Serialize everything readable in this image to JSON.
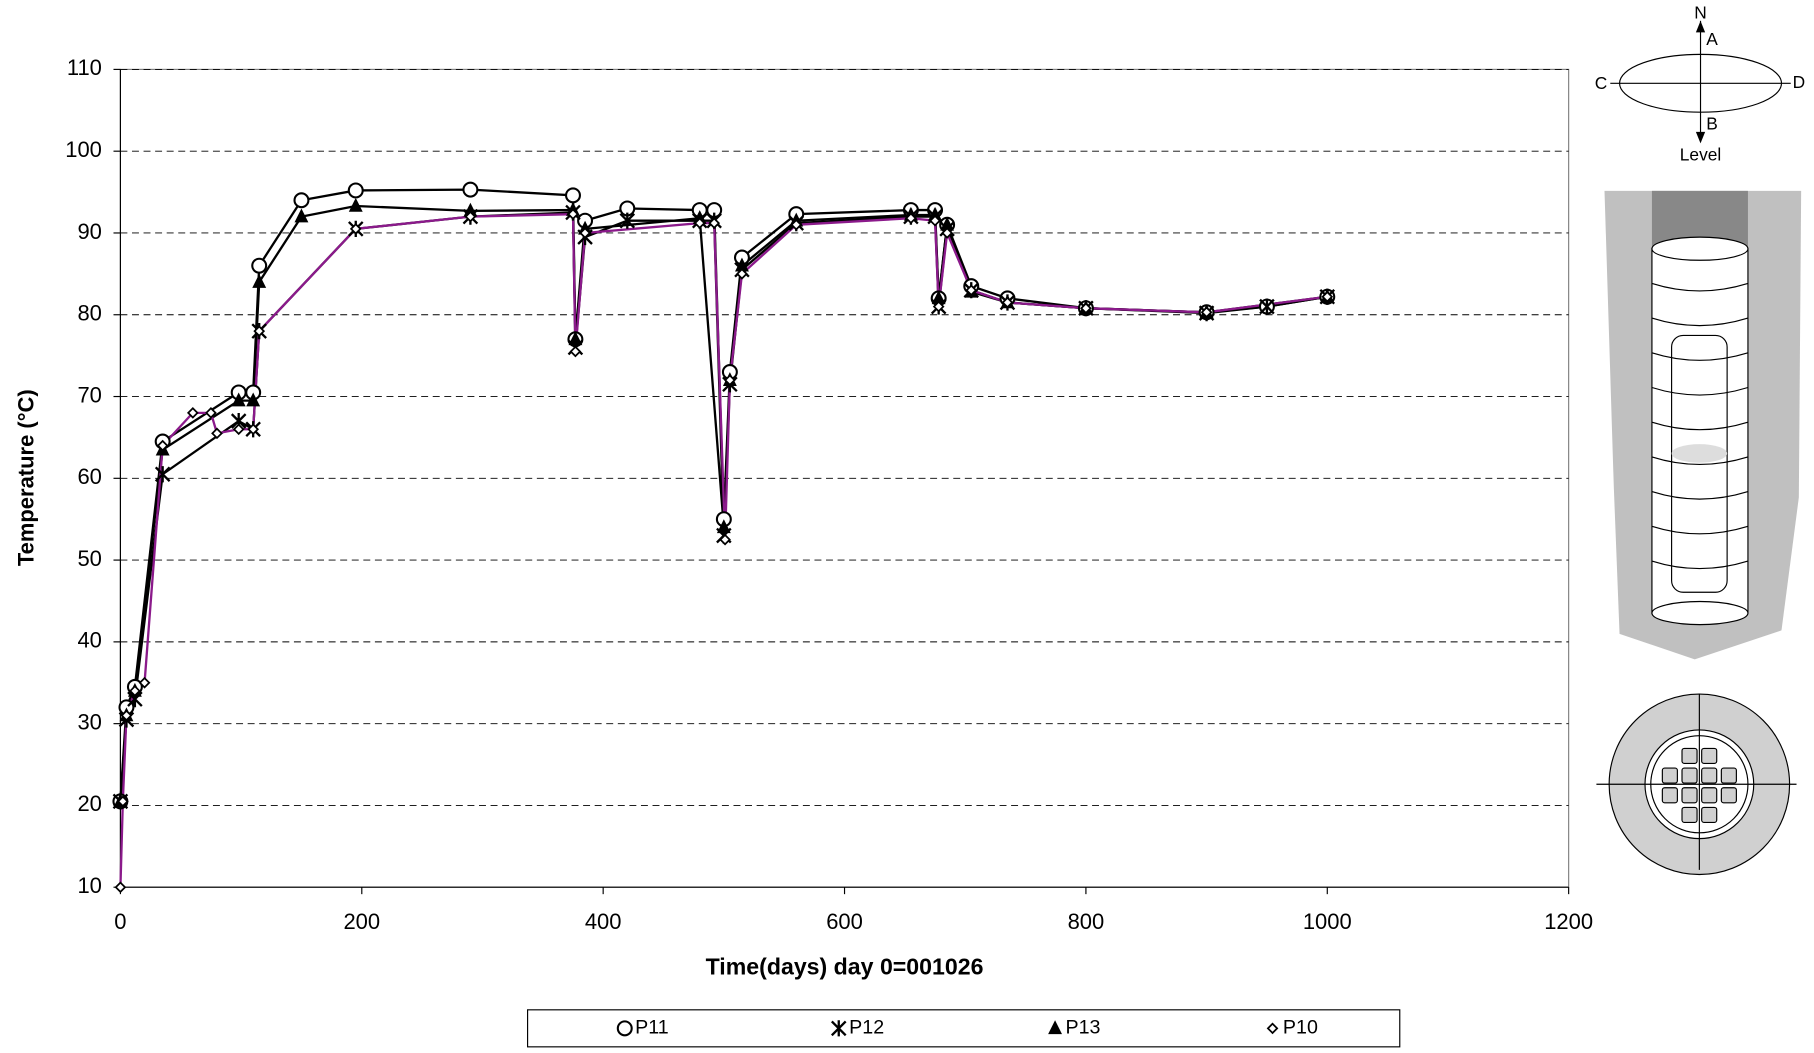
{
  "chart_data": {
    "type": "line",
    "y_label": "Temperature (°C)",
    "x_label": "Time(days)  day 0=001026",
    "xlim": [
      0,
      1200
    ],
    "xticks": [
      0,
      200,
      400,
      600,
      800,
      1000,
      1200
    ],
    "ylim": [
      10,
      110
    ],
    "yticks": [
      10,
      20,
      30,
      40,
      50,
      60,
      70,
      80,
      90,
      100,
      110
    ],
    "grid": true,
    "legend": "bottom",
    "series": [
      {
        "name": "P11",
        "color": "#000000",
        "marker": "circle",
        "x": [
          0,
          5,
          12,
          35,
          98,
          110,
          115,
          150,
          195,
          290,
          375,
          377,
          385,
          420,
          480,
          492,
          500,
          505,
          515,
          560,
          655,
          675,
          678,
          685,
          705,
          735,
          800,
          900,
          950,
          1000
        ],
        "values": [
          20.5,
          32,
          34.5,
          64.5,
          70.5,
          70.5,
          86,
          94,
          95.2,
          95.3,
          94.6,
          77,
          91.5,
          93,
          92.8,
          92.8,
          55,
          73,
          87,
          92.3,
          92.8,
          92.8,
          82,
          91,
          83.5,
          82,
          80.8,
          80.3,
          81,
          82.2
        ]
      },
      {
        "name": "P12",
        "color": "#000000",
        "marker": "star",
        "x": [
          0,
          5,
          12,
          35,
          98,
          110,
          115,
          195,
          290,
          375,
          377,
          385,
          420,
          480,
          492,
          500,
          505,
          515,
          560,
          655,
          675,
          678,
          685,
          705,
          735,
          800,
          900,
          950,
          1000
        ],
        "values": [
          20.5,
          30.5,
          33,
          60.5,
          67,
          66,
          78,
          90.5,
          92,
          92.5,
          76,
          89.5,
          91.5,
          91.5,
          91.5,
          53,
          71.5,
          85.5,
          91.2,
          92,
          92,
          81,
          90.5,
          83,
          81.5,
          80.8,
          80.2,
          81,
          82.2
        ]
      },
      {
        "name": "P13",
        "color": "#000000",
        "marker": "triangle",
        "x": [
          0,
          5,
          12,
          35,
          98,
          110,
          115,
          150,
          195,
          290,
          375,
          377,
          385,
          480,
          500,
          505,
          515,
          560,
          655,
          675,
          678,
          685,
          705,
          735,
          800,
          900,
          1000
        ],
        "values": [
          20.5,
          31,
          34,
          63.5,
          69.5,
          69.5,
          84,
          92,
          93.3,
          92.7,
          92.8,
          77,
          90.5,
          91.8,
          54,
          72,
          86,
          91.5,
          92.2,
          92.2,
          82,
          91,
          82.8,
          81.5,
          80.8,
          80.3,
          82.2
        ]
      },
      {
        "name": "P10",
        "color": "#8b1a8b",
        "marker": "diamond",
        "x": [
          0,
          2,
          5,
          12,
          20,
          35,
          60,
          75,
          80,
          98,
          110,
          115,
          195,
          290,
          375,
          377,
          385,
          480,
          492,
          501,
          505,
          515,
          560,
          655,
          675,
          678,
          685,
          705,
          735,
          800,
          900,
          1000
        ],
        "values": [
          10,
          20.5,
          31,
          34,
          35,
          64,
          68,
          68,
          65.5,
          66,
          66,
          78,
          90.5,
          92,
          92.3,
          75.5,
          90,
          91.2,
          91.2,
          52.5,
          72,
          85,
          91,
          91.8,
          91.5,
          81,
          90,
          83,
          81.5,
          80.8,
          80.3,
          82.2
        ]
      }
    ]
  },
  "diagram": {
    "north": "N",
    "a": "A",
    "b": "B",
    "c": "C",
    "d": "D",
    "level": "Level"
  }
}
